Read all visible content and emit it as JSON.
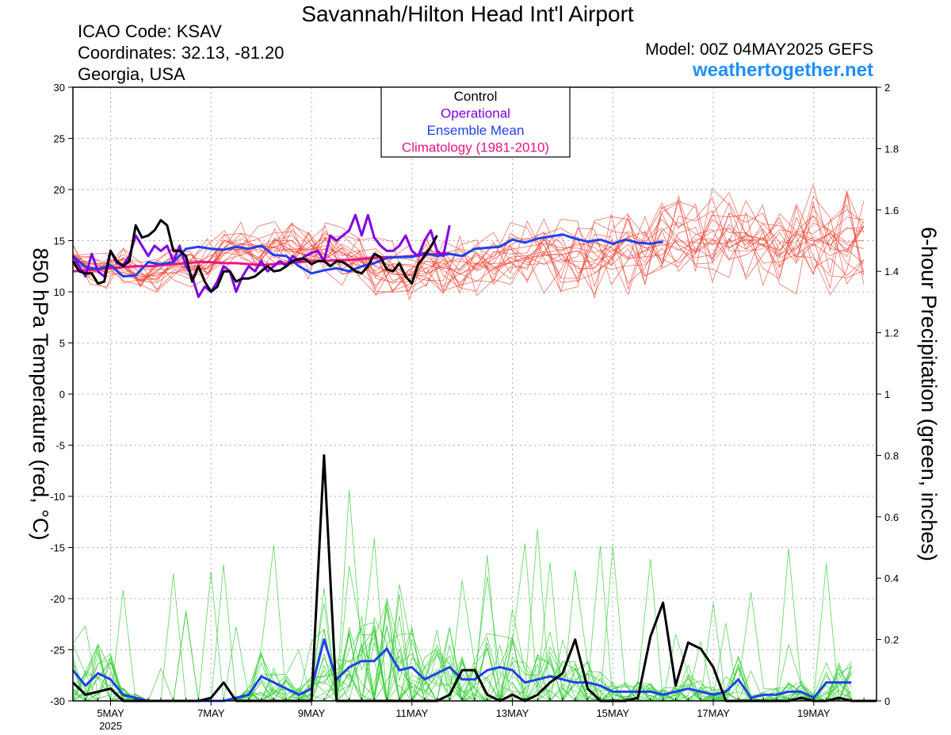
{
  "header": {
    "title": "Savannah/Hilton Head Int'l Airport",
    "icao": "ICAO Code: KSAV",
    "coords": "Coordinates: 32.13, -81.20",
    "region": "Georgia, USA",
    "model": "Model: 00Z 04MAY2025 GEFS",
    "site": "weathertogether.net"
  },
  "chart_data": {
    "type": "line",
    "title": "Savannah/Hilton Head Int'l Airport",
    "ylabel": "850 hPa Temperature (red, °C)",
    "y2label": "6-hour Precipitation (green, inches)",
    "ylim": [
      -30,
      30
    ],
    "y2lim": [
      0,
      2
    ],
    "yticks": [
      "30",
      "25",
      "20",
      "15",
      "10",
      "5",
      "0",
      "-5",
      "-10",
      "-15",
      "-20",
      "-25",
      "-30"
    ],
    "y2ticks": [
      "2",
      "1.8",
      "1.6",
      "1.4",
      "1.2",
      "1",
      "0.8",
      "0.6",
      "0.4",
      "0.2",
      "0"
    ],
    "xlim": [
      0,
      64
    ],
    "x_unit": "6-hour steps from 00Z 04MAY2025",
    "xtick_labels": [
      {
        "label": "5MAY",
        "x": 3,
        "sub": "2025"
      },
      {
        "label": "7MAY",
        "x": 11
      },
      {
        "label": "9MAY",
        "x": 19
      },
      {
        "label": "11MAY",
        "x": 27
      },
      {
        "label": "13MAY",
        "x": 35
      },
      {
        "label": "15MAY",
        "x": 43
      },
      {
        "label": "17MAY",
        "x": 51
      },
      {
        "label": "19MAY",
        "x": 59
      }
    ],
    "grid": true,
    "legend": {
      "placement": "top-center",
      "entries": [
        {
          "label": "Control",
          "color": "#000000"
        },
        {
          "label": "Operational",
          "color": "#8000e0"
        },
        {
          "label": "Ensemble Mean",
          "color": "#2040ee"
        },
        {
          "label": "Climatology (1981-2010)",
          "color": "#ee1188"
        }
      ]
    },
    "colors": {
      "members_temp": "#f04030",
      "members_precip": "#30cc30",
      "control": "#000000",
      "operational": "#8000e0",
      "mean": "#2040ee",
      "climatology": "#ee1188"
    },
    "series": [
      {
        "name": "Control",
        "axis": "temp",
        "step": 0.5,
        "values": [
          13,
          12,
          11.8,
          11.8,
          10.8,
          11,
          14,
          13,
          12.5,
          13,
          16.5,
          15.3,
          15.5,
          16,
          17,
          16.5,
          14,
          14,
          13.5,
          11,
          12.5,
          11,
          10,
          10.5,
          12,
          12,
          11,
          11.3,
          11.3,
          11.5,
          12,
          12.5,
          12,
          12.1,
          12.5,
          13,
          13.2,
          13.2,
          12.7,
          13,
          13,
          12.5,
          13,
          12.9,
          12.5,
          12,
          11.8,
          12.5,
          13.7,
          13.4,
          12.2,
          12,
          12.8,
          11.5,
          10.8,
          12.7,
          13.5,
          14.4,
          15.5
        ]
      },
      {
        "name": "Operational",
        "axis": "temp",
        "step": 0.5,
        "values": [
          13.5,
          12.5,
          11.5,
          13.7,
          12,
          11.5,
          14,
          12.8,
          12.6,
          13.5,
          15.5,
          14.5,
          13.5,
          14.5,
          14,
          14.5,
          13,
          14.5,
          12.5,
          11.5,
          9.5,
          10.5,
          10,
          11,
          12.5,
          12,
          10,
          11.5,
          12.5,
          12,
          13,
          12,
          12.5,
          13,
          12.5,
          13.5,
          13,
          13.5,
          13.8,
          14,
          13,
          15.5,
          15,
          15.5,
          16,
          17.5,
          15.5,
          17.5,
          15.3,
          14.5,
          14,
          14,
          14.5,
          15.5,
          14,
          13.5,
          15,
          16,
          14,
          13.5,
          16.5
        ]
      },
      {
        "name": "Ensemble Mean",
        "axis": "temp",
        "step": 1,
        "values": [
          13.5,
          12.4,
          12.2,
          12.6,
          11.5,
          11.6,
          12.9,
          12.7,
          12.9,
          14.2,
          14.4,
          14.2,
          14.1,
          14.4,
          14.2,
          14.5,
          13.6,
          13.5,
          12.5,
          11.8,
          12.1,
          12.3,
          12,
          12.5,
          12.8,
          13.3,
          13.4,
          13.4,
          13.8,
          13.5,
          13.7,
          13.5,
          14.2,
          14.3,
          14.4,
          15.1,
          14.8,
          15.2,
          15.4,
          15.6,
          15.2,
          14.9,
          15.1,
          14.7,
          15.1,
          14.8,
          14.7,
          14.9
        ]
      },
      {
        "name": "Climatology (1981-2010)",
        "axis": "temp",
        "step": 1,
        "values": [
          12,
          12.1,
          12.2,
          12.3,
          12.4,
          12.5,
          12.5,
          12.6,
          12.7,
          12.8,
          12.9,
          12.9,
          12.8,
          12.8,
          12.7,
          12.6,
          12.7,
          12.8,
          12.9,
          13,
          13,
          13.1,
          13.1,
          13.2,
          13.3,
          13.4,
          13.4,
          13.5,
          13.6,
          13.7,
          13.8
        ]
      },
      {
        "name": "Control",
        "axis": "precip",
        "step": 1,
        "values": [
          0.06,
          0.02,
          0.03,
          0.04,
          0,
          0,
          0,
          0,
          0,
          0,
          0,
          0.01,
          0.06,
          0,
          0,
          0,
          0,
          0,
          0,
          0,
          0.8,
          0,
          0,
          0,
          0,
          0,
          0,
          0,
          0,
          0,
          0.02,
          0.1,
          0.1,
          0.02,
          0,
          0.02,
          0,
          0.02,
          0.06,
          0.09,
          0.2,
          0.04,
          0,
          0,
          0,
          0.01,
          0.21,
          0.32,
          0.05,
          0.19,
          0.17,
          0.11,
          0,
          0,
          0,
          0,
          0,
          0,
          0.01,
          0,
          0,
          0.01,
          0,
          0,
          0
        ]
      },
      {
        "name": "Ensemble Mean",
        "axis": "precip",
        "step": 1,
        "values": [
          0.1,
          0.05,
          0.09,
          0.07,
          0.02,
          0.01,
          0,
          0,
          0,
          0,
          0,
          0,
          0,
          0.01,
          0.02,
          0.08,
          0.06,
          0.04,
          0.02,
          0.04,
          0.2,
          0.07,
          0.11,
          0.13,
          0.13,
          0.17,
          0.1,
          0.11,
          0.07,
          0.09,
          0.11,
          0.07,
          0.07,
          0.1,
          0.11,
          0.1,
          0.06,
          0.07,
          0.08,
          0.07,
          0.06,
          0.06,
          0.05,
          0.03,
          0.03,
          0.03,
          0.03,
          0.02,
          0.03,
          0.04,
          0.03,
          0.02,
          0.03,
          0.07,
          0.01,
          0.02,
          0.02,
          0.03,
          0.03,
          0.01,
          0.06,
          0.06,
          0.06
        ]
      }
    ]
  }
}
